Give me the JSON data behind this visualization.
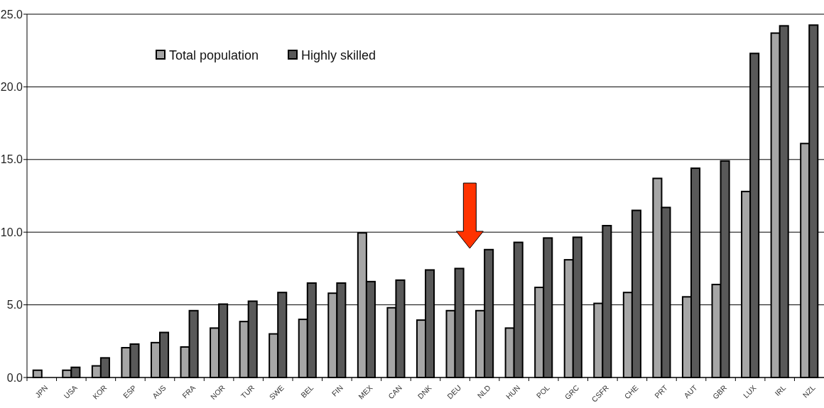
{
  "chart_data": {
    "type": "bar",
    "categories": [
      "JPN",
      "USA",
      "KOR",
      "ESP",
      "AUS",
      "FRA",
      "NOR",
      "TUR",
      "SWE",
      "BEL",
      "FIN",
      "MEX",
      "CAN",
      "DNK",
      "DEU",
      "NLD",
      "HUN",
      "POL",
      "GRC",
      "CSFR",
      "CHE",
      "PRT",
      "AUT",
      "GBR",
      "LUX",
      "IRL",
      "NZL"
    ],
    "series": [
      {
        "name": "Total population",
        "color": "#a6a6a6",
        "values": [
          0.5,
          0.5,
          0.8,
          2.05,
          2.4,
          2.1,
          3.4,
          3.85,
          3.0,
          4.0,
          5.8,
          9.95,
          4.8,
          3.95,
          4.6,
          4.6,
          3.4,
          6.2,
          8.1,
          5.1,
          5.85,
          13.7,
          5.55,
          6.4,
          12.8,
          23.7,
          16.1
        ]
      },
      {
        "name": "Highly skilled",
        "color": "#595959",
        "values": [
          null,
          0.7,
          1.35,
          2.3,
          3.1,
          4.6,
          5.05,
          5.25,
          5.85,
          6.5,
          6.5,
          6.6,
          6.7,
          7.4,
          7.5,
          8.8,
          9.3,
          9.6,
          9.65,
          10.45,
          11.5,
          11.7,
          14.4,
          14.9,
          22.3,
          24.2,
          24.25
        ]
      }
    ],
    "ylim": [
      0,
      25
    ],
    "yticks": [
      {
        "value": 0,
        "label": "0.0"
      },
      {
        "value": 5,
        "label": "5.0"
      },
      {
        "value": 10,
        "label": "10.0"
      },
      {
        "value": 15,
        "label": "15.0"
      },
      {
        "value": 20,
        "label": "20.0"
      },
      {
        "value": 25,
        "label": "25.0"
      }
    ],
    "grid": "y",
    "legend": "top left"
  }
}
